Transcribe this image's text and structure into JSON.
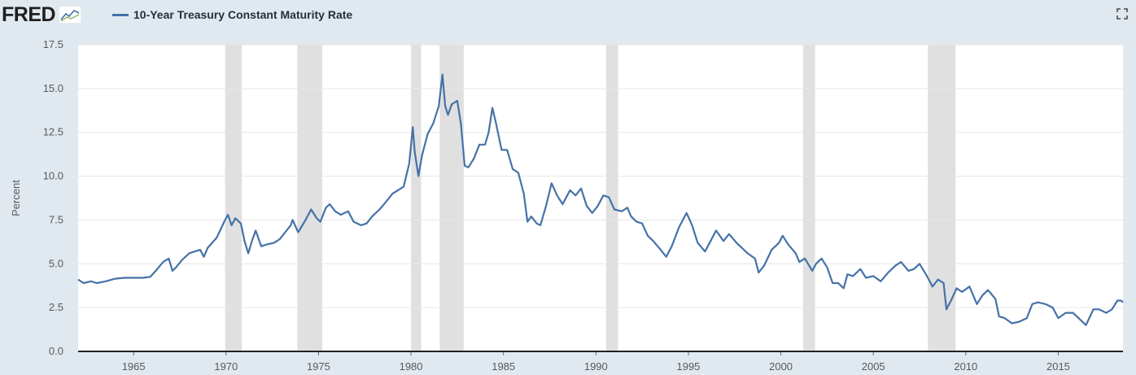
{
  "brand": {
    "logo_text": "FRED",
    "logo_icon": "chart-trend-icon"
  },
  "legend": {
    "series_label": "10-Year Treasury Constant Maturity Rate",
    "color": "#4572a7"
  },
  "controls": {
    "fullscreen_icon": "fullscreen-icon"
  },
  "colors": {
    "background": "#e1e9f0",
    "plot_bg": "#ffffff",
    "line": "#4572a7",
    "recession": "#e0e0e0",
    "grid": "#e6e6e6"
  },
  "chart_data": {
    "type": "line",
    "title": "",
    "ylabel": "Percent",
    "xlabel": "",
    "xlim": [
      1962.0,
      2018.5
    ],
    "ylim": [
      0,
      17.5
    ],
    "y_ticks": [
      "0.0",
      "2.5",
      "5.0",
      "7.5",
      "10.0",
      "12.5",
      "15.0",
      "17.5"
    ],
    "x_ticks": [
      "1965",
      "1970",
      "1975",
      "1980",
      "1985",
      "1990",
      "1995",
      "2000",
      "2005",
      "2010",
      "2015"
    ],
    "grid": "horizontal",
    "recessions": [
      [
        1969.95,
        1970.85
      ],
      [
        1973.85,
        1975.2
      ],
      [
        1980.0,
        1980.55
      ],
      [
        1981.55,
        1982.85
      ],
      [
        1990.55,
        1991.2
      ],
      [
        2001.2,
        2001.85
      ],
      [
        2007.95,
        2009.45
      ]
    ],
    "series": [
      {
        "name": "10-Year Treasury Constant Maturity Rate",
        "points": [
          [
            1962.0,
            4.1
          ],
          [
            1962.3,
            3.9
          ],
          [
            1962.7,
            4.0
          ],
          [
            1963.0,
            3.9
          ],
          [
            1963.5,
            4.0
          ],
          [
            1964.0,
            4.15
          ],
          [
            1964.5,
            4.2
          ],
          [
            1965.0,
            4.2
          ],
          [
            1965.5,
            4.2
          ],
          [
            1965.9,
            4.25
          ],
          [
            1966.2,
            4.6
          ],
          [
            1966.6,
            5.1
          ],
          [
            1966.9,
            5.3
          ],
          [
            1967.1,
            4.6
          ],
          [
            1967.3,
            4.8
          ],
          [
            1967.6,
            5.2
          ],
          [
            1968.0,
            5.6
          ],
          [
            1968.3,
            5.7
          ],
          [
            1968.6,
            5.8
          ],
          [
            1968.8,
            5.4
          ],
          [
            1969.0,
            5.9
          ],
          [
            1969.5,
            6.5
          ],
          [
            1969.9,
            7.4
          ],
          [
            1970.1,
            7.8
          ],
          [
            1970.3,
            7.2
          ],
          [
            1970.5,
            7.6
          ],
          [
            1970.8,
            7.3
          ],
          [
            1971.0,
            6.3
          ],
          [
            1971.2,
            5.6
          ],
          [
            1971.4,
            6.3
          ],
          [
            1971.6,
            6.9
          ],
          [
            1971.9,
            6.0
          ],
          [
            1972.2,
            6.1
          ],
          [
            1972.6,
            6.2
          ],
          [
            1972.9,
            6.4
          ],
          [
            1973.2,
            6.8
          ],
          [
            1973.5,
            7.2
          ],
          [
            1973.6,
            7.5
          ],
          [
            1973.9,
            6.8
          ],
          [
            1974.3,
            7.5
          ],
          [
            1974.6,
            8.1
          ],
          [
            1974.9,
            7.6
          ],
          [
            1975.1,
            7.4
          ],
          [
            1975.4,
            8.2
          ],
          [
            1975.6,
            8.4
          ],
          [
            1975.9,
            8.0
          ],
          [
            1976.2,
            7.8
          ],
          [
            1976.6,
            8.0
          ],
          [
            1976.9,
            7.4
          ],
          [
            1977.3,
            7.2
          ],
          [
            1977.6,
            7.3
          ],
          [
            1977.9,
            7.7
          ],
          [
            1978.3,
            8.1
          ],
          [
            1978.7,
            8.6
          ],
          [
            1979.0,
            9.0
          ],
          [
            1979.3,
            9.2
          ],
          [
            1979.6,
            9.4
          ],
          [
            1979.9,
            10.7
          ],
          [
            1980.1,
            12.8
          ],
          [
            1980.2,
            11.4
          ],
          [
            1980.4,
            10.0
          ],
          [
            1980.6,
            11.2
          ],
          [
            1980.9,
            12.4
          ],
          [
            1981.2,
            13.0
          ],
          [
            1981.5,
            14.0
          ],
          [
            1981.7,
            15.8
          ],
          [
            1981.85,
            14.0
          ],
          [
            1982.0,
            13.5
          ],
          [
            1982.2,
            14.1
          ],
          [
            1982.5,
            14.3
          ],
          [
            1982.7,
            13.0
          ],
          [
            1982.9,
            10.6
          ],
          [
            1983.1,
            10.5
          ],
          [
            1983.4,
            11.0
          ],
          [
            1983.7,
            11.8
          ],
          [
            1984.0,
            11.8
          ],
          [
            1984.2,
            12.5
          ],
          [
            1984.4,
            13.9
          ],
          [
            1984.6,
            13.0
          ],
          [
            1984.9,
            11.5
          ],
          [
            1985.2,
            11.5
          ],
          [
            1985.5,
            10.4
          ],
          [
            1985.8,
            10.2
          ],
          [
            1986.1,
            9.0
          ],
          [
            1986.3,
            7.4
          ],
          [
            1986.5,
            7.7
          ],
          [
            1986.8,
            7.3
          ],
          [
            1987.0,
            7.2
          ],
          [
            1987.3,
            8.3
          ],
          [
            1987.6,
            9.6
          ],
          [
            1987.9,
            8.9
          ],
          [
            1988.2,
            8.4
          ],
          [
            1988.6,
            9.2
          ],
          [
            1988.9,
            8.9
          ],
          [
            1989.2,
            9.3
          ],
          [
            1989.5,
            8.3
          ],
          [
            1989.8,
            7.9
          ],
          [
            1990.1,
            8.3
          ],
          [
            1990.4,
            8.9
          ],
          [
            1990.7,
            8.8
          ],
          [
            1991.0,
            8.1
          ],
          [
            1991.4,
            8.0
          ],
          [
            1991.7,
            8.2
          ],
          [
            1991.9,
            7.7
          ],
          [
            1992.2,
            7.4
          ],
          [
            1992.5,
            7.3
          ],
          [
            1992.8,
            6.6
          ],
          [
            1993.1,
            6.3
          ],
          [
            1993.5,
            5.8
          ],
          [
            1993.8,
            5.4
          ],
          [
            1994.1,
            6.0
          ],
          [
            1994.5,
            7.1
          ],
          [
            1994.9,
            7.9
          ],
          [
            1995.2,
            7.2
          ],
          [
            1995.5,
            6.2
          ],
          [
            1995.9,
            5.7
          ],
          [
            1996.2,
            6.3
          ],
          [
            1996.5,
            6.9
          ],
          [
            1996.9,
            6.3
          ],
          [
            1997.2,
            6.7
          ],
          [
            1997.6,
            6.2
          ],
          [
            1997.9,
            5.9
          ],
          [
            1998.2,
            5.6
          ],
          [
            1998.6,
            5.3
          ],
          [
            1998.8,
            4.5
          ],
          [
            1999.1,
            4.9
          ],
          [
            1999.5,
            5.8
          ],
          [
            1999.9,
            6.2
          ],
          [
            2000.1,
            6.6
          ],
          [
            2000.4,
            6.1
          ],
          [
            2000.8,
            5.6
          ],
          [
            2001.0,
            5.1
          ],
          [
            2001.3,
            5.3
          ],
          [
            2001.7,
            4.6
          ],
          [
            2001.9,
            5.0
          ],
          [
            2002.2,
            5.3
          ],
          [
            2002.5,
            4.8
          ],
          [
            2002.8,
            3.9
          ],
          [
            2003.1,
            3.9
          ],
          [
            2003.4,
            3.6
          ],
          [
            2003.6,
            4.4
          ],
          [
            2003.9,
            4.3
          ],
          [
            2004.3,
            4.7
          ],
          [
            2004.6,
            4.2
          ],
          [
            2005.0,
            4.3
          ],
          [
            2005.4,
            4.0
          ],
          [
            2005.8,
            4.5
          ],
          [
            2006.2,
            4.9
          ],
          [
            2006.5,
            5.1
          ],
          [
            2006.9,
            4.6
          ],
          [
            2007.2,
            4.7
          ],
          [
            2007.5,
            5.0
          ],
          [
            2007.9,
            4.3
          ],
          [
            2008.2,
            3.7
          ],
          [
            2008.5,
            4.1
          ],
          [
            2008.8,
            3.9
          ],
          [
            2008.95,
            2.4
          ],
          [
            2009.2,
            2.9
          ],
          [
            2009.5,
            3.6
          ],
          [
            2009.8,
            3.4
          ],
          [
            2010.2,
            3.7
          ],
          [
            2010.6,
            2.7
          ],
          [
            2010.9,
            3.2
          ],
          [
            2011.2,
            3.5
          ],
          [
            2011.6,
            3.0
          ],
          [
            2011.8,
            2.0
          ],
          [
            2012.1,
            1.9
          ],
          [
            2012.5,
            1.6
          ],
          [
            2012.9,
            1.7
          ],
          [
            2013.3,
            1.9
          ],
          [
            2013.6,
            2.7
          ],
          [
            2013.9,
            2.8
          ],
          [
            2014.3,
            2.7
          ],
          [
            2014.7,
            2.5
          ],
          [
            2015.0,
            1.9
          ],
          [
            2015.4,
            2.2
          ],
          [
            2015.8,
            2.2
          ],
          [
            2016.2,
            1.8
          ],
          [
            2016.5,
            1.5
          ],
          [
            2016.9,
            2.4
          ],
          [
            2017.2,
            2.4
          ],
          [
            2017.6,
            2.2
          ],
          [
            2017.9,
            2.4
          ],
          [
            2018.2,
            2.9
          ],
          [
            2018.4,
            2.9
          ],
          [
            2018.5,
            2.8
          ]
        ]
      }
    ]
  }
}
